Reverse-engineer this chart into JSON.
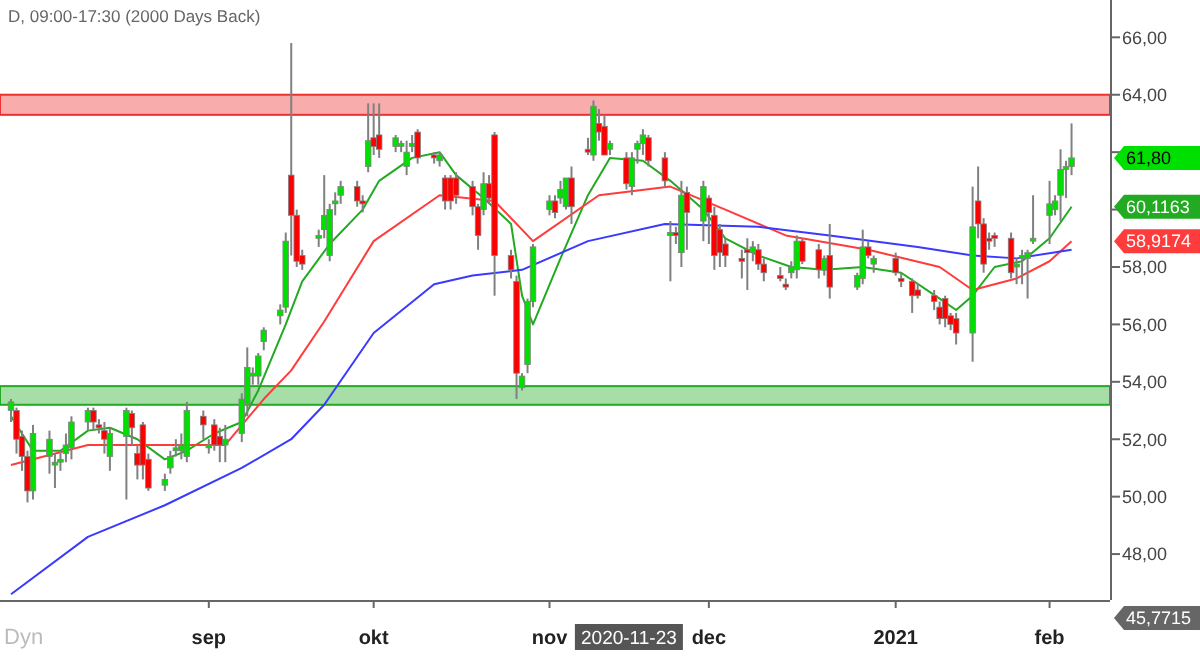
{
  "chart_data": {
    "type": "candlestick",
    "title": "D, 09:00-17:30 (2000 Days Back)",
    "x": [
      "2020-07-27",
      "2020-07-28",
      "2020-07-29",
      "2020-07-30",
      "2020-07-31",
      "2020-08-03",
      "2020-08-04",
      "2020-08-05",
      "2020-08-06",
      "2020-08-07",
      "2020-08-10",
      "2020-08-11",
      "2020-08-12",
      "2020-08-13",
      "2020-08-14",
      "2020-08-17",
      "2020-08-18",
      "2020-08-19",
      "2020-08-20",
      "2020-08-21",
      "2020-08-24",
      "2020-08-25",
      "2020-08-26",
      "2020-08-27",
      "2020-08-28",
      "2020-08-31",
      "2020-09-01",
      "2020-09-02",
      "2020-09-03",
      "2020-09-04",
      "2020-09-07",
      "2020-09-08",
      "2020-09-09",
      "2020-09-10",
      "2020-09-11",
      "2020-09-14",
      "2020-09-15",
      "2020-09-16",
      "2020-09-17",
      "2020-09-18",
      "2020-09-21",
      "2020-09-22",
      "2020-09-23",
      "2020-09-24",
      "2020-09-25",
      "2020-09-28",
      "2020-09-29",
      "2020-09-30",
      "2020-10-01",
      "2020-10-02",
      "2020-10-05",
      "2020-10-06",
      "2020-10-07",
      "2020-10-08",
      "2020-10-09",
      "2020-10-12",
      "2020-10-13",
      "2020-10-14",
      "2020-10-15",
      "2020-10-16",
      "2020-10-19",
      "2020-10-20",
      "2020-10-21",
      "2020-10-22",
      "2020-10-23",
      "2020-10-26",
      "2020-10-27",
      "2020-10-28",
      "2020-10-29",
      "2020-10-30",
      "2020-11-02",
      "2020-11-03",
      "2020-11-04",
      "2020-11-05",
      "2020-11-06",
      "2020-11-09",
      "2020-11-10",
      "2020-11-11",
      "2020-11-12",
      "2020-11-13",
      "2020-11-16",
      "2020-11-17",
      "2020-11-18",
      "2020-11-19",
      "2020-11-20",
      "2020-11-23",
      "2020-11-24",
      "2020-11-25",
      "2020-11-26",
      "2020-11-27",
      "2020-11-30",
      "2020-12-01",
      "2020-12-02",
      "2020-12-03",
      "2020-12-04",
      "2020-12-07",
      "2020-12-08",
      "2020-12-09",
      "2020-12-10",
      "2020-12-11",
      "2020-12-14",
      "2020-12-15",
      "2020-12-16",
      "2020-12-17",
      "2020-12-18",
      "2020-12-21",
      "2020-12-22",
      "2020-12-23",
      "2020-12-28",
      "2020-12-29",
      "2020-12-30",
      "2020-12-31",
      "2021-01-04",
      "2021-01-05",
      "2021-01-07",
      "2021-01-08",
      "2021-01-11",
      "2021-01-12",
      "2021-01-13",
      "2021-01-14",
      "2021-01-15",
      "2021-01-18",
      "2021-01-19",
      "2021-01-20",
      "2021-01-21",
      "2021-01-22",
      "2021-01-25",
      "2021-01-26",
      "2021-01-27",
      "2021-01-28",
      "2021-01-29",
      "2021-02-01",
      "2021-02-02",
      "2021-02-03",
      "2021-02-04",
      "2021-02-05"
    ],
    "ohlc": [
      [
        53.0,
        53.4,
        52.6,
        53.3
      ],
      [
        53.0,
        53.1,
        51.5,
        52.0
      ],
      [
        52.1,
        52.3,
        50.9,
        51.4
      ],
      [
        51.4,
        51.6,
        49.8,
        50.2
      ],
      [
        50.2,
        52.5,
        49.9,
        52.2
      ],
      [
        51.4,
        52.3,
        50.8,
        52.0
      ],
      [
        51.1,
        51.5,
        50.3,
        51.2
      ],
      [
        51.2,
        51.6,
        50.9,
        51.3
      ],
      [
        51.5,
        52.2,
        51.2,
        51.8
      ],
      [
        51.7,
        52.8,
        51.3,
        52.6
      ],
      [
        52.6,
        53.1,
        52.3,
        53.0
      ],
      [
        53.0,
        53.1,
        52.3,
        52.6
      ],
      [
        52.5,
        52.7,
        52.2,
        52.4
      ],
      [
        52.3,
        52.6,
        51.5,
        52.0
      ],
      [
        51.4,
        52.4,
        50.9,
        52.2
      ],
      [
        52.1,
        53.1,
        49.9,
        53.0
      ],
      [
        52.9,
        53.0,
        51.8,
        52.4
      ],
      [
        51.5,
        51.8,
        50.6,
        51.1
      ],
      [
        52.5,
        52.6,
        50.6,
        51.1
      ],
      [
        51.3,
        51.5,
        50.2,
        50.3
      ],
      [
        50.4,
        50.8,
        50.2,
        50.6
      ],
      [
        51.0,
        51.6,
        50.8,
        51.4
      ],
      [
        51.6,
        52.0,
        51.4,
        51.7
      ],
      [
        51.6,
        52.2,
        51.3,
        51.8
      ],
      [
        51.4,
        53.3,
        51.2,
        53.0
      ],
      [
        52.8,
        53.0,
        52.0,
        52.5
      ],
      [
        51.7,
        52.0,
        51.5,
        51.8
      ],
      [
        52.5,
        52.7,
        51.6,
        51.8
      ],
      [
        52.1,
        52.4,
        51.2,
        51.8
      ],
      [
        51.8,
        52.5,
        51.2,
        52.0
      ],
      [
        52.2,
        53.6,
        51.9,
        53.4
      ],
      [
        53.2,
        55.2,
        52.8,
        54.5
      ],
      [
        54.2,
        54.5,
        53.9,
        54.3
      ],
      [
        54.2,
        55.0,
        53.9,
        54.9
      ],
      [
        55.4,
        55.9,
        55.1,
        55.8
      ],
      [
        56.3,
        56.7,
        56.0,
        56.5
      ],
      [
        56.6,
        59.2,
        56.4,
        58.9
      ],
      [
        61.2,
        65.8,
        58.4,
        59.8
      ],
      [
        59.8,
        60.0,
        58.0,
        58.2
      ],
      [
        58.4,
        58.6,
        57.9,
        58.1
      ],
      [
        59.0,
        59.3,
        58.7,
        59.1
      ],
      [
        59.3,
        61.2,
        59.0,
        59.8
      ],
      [
        58.4,
        60.2,
        58.2,
        60.0
      ],
      [
        60.2,
        60.6,
        59.8,
        60.3
      ],
      [
        60.5,
        61.0,
        60.2,
        60.8
      ],
      [
        60.8,
        61.0,
        60.1,
        60.3
      ],
      [
        60.3,
        60.5,
        59.9,
        60.2
      ],
      [
        61.5,
        63.7,
        61.3,
        62.4
      ],
      [
        62.5,
        63.7,
        61.9,
        62.2
      ],
      [
        62.6,
        63.7,
        61.8,
        62.1
      ],
      [
        62.2,
        62.6,
        62.0,
        62.5
      ],
      [
        62.2,
        62.4,
        62.0,
        62.3
      ],
      [
        61.5,
        62.4,
        61.2,
        62.0
      ],
      [
        62.2,
        62.6,
        62.0,
        62.3
      ],
      [
        62.7,
        62.8,
        61.6,
        61.8
      ],
      [
        61.9,
        62.0,
        61.6,
        61.8
      ],
      [
        61.7,
        62.0,
        61.5,
        61.9
      ],
      [
        61.1,
        61.2,
        60.0,
        60.3
      ],
      [
        61.1,
        61.2,
        60.0,
        60.3
      ],
      [
        61.1,
        61.3,
        60.2,
        60.5
      ],
      [
        60.8,
        61.0,
        59.8,
        60.1
      ],
      [
        60.1,
        60.2,
        58.6,
        59.1
      ],
      [
        60.0,
        61.3,
        59.8,
        60.9
      ],
      [
        60.9,
        61.2,
        60.2,
        60.4
      ],
      [
        62.6,
        62.7,
        57.0,
        58.4
      ],
      [
        58.4,
        58.6,
        57.6,
        57.9
      ],
      [
        57.5,
        57.7,
        53.4,
        54.3
      ],
      [
        53.8,
        54.3,
        53.7,
        54.2
      ],
      [
        54.6,
        56.9,
        54.3,
        56.8
      ],
      [
        56.8,
        58.8,
        56.6,
        58.7
      ],
      [
        60.0,
        60.5,
        59.8,
        60.3
      ],
      [
        60.3,
        60.5,
        59.7,
        59.9
      ],
      [
        60.4,
        61.0,
        60.2,
        60.7
      ],
      [
        60.1,
        61.1,
        60.0,
        61.1
      ],
      [
        61.1,
        61.5,
        59.5,
        60.1
      ],
      [
        62.1,
        62.5,
        61.9,
        62.0
      ],
      [
        61.9,
        63.8,
        61.7,
        63.6
      ],
      [
        63.0,
        63.5,
        62.4,
        62.7
      ],
      [
        62.9,
        63.3,
        61.9,
        61.9
      ],
      [
        62.1,
        62.4,
        61.9,
        62.3
      ],
      [
        61.8,
        62.0,
        60.7,
        60.9
      ],
      [
        60.8,
        62.0,
        60.5,
        61.8
      ],
      [
        62.1,
        62.4,
        61.6,
        62.3
      ],
      [
        62.3,
        62.8,
        61.9,
        62.6
      ],
      [
        62.5,
        62.6,
        61.5,
        61.7
      ],
      [
        61.8,
        62.0,
        60.8,
        61.0
      ],
      [
        59.1,
        59.6,
        57.5,
        59.2
      ],
      [
        59.2,
        59.4,
        58.8,
        59.1
      ],
      [
        58.5,
        61.0,
        58.0,
        60.5
      ],
      [
        60.6,
        60.8,
        58.6,
        59.9
      ],
      [
        59.6,
        61.0,
        58.9,
        60.8
      ],
      [
        60.4,
        60.5,
        58.8,
        59.9
      ],
      [
        59.8,
        60.1,
        57.9,
        58.4
      ],
      [
        59.3,
        59.5,
        58.0,
        58.5
      ],
      [
        58.8,
        59.0,
        58.0,
        58.4
      ],
      [
        58.3,
        58.6,
        57.6,
        58.2
      ],
      [
        58.6,
        59.0,
        57.2,
        58.5
      ],
      [
        58.5,
        58.9,
        58.2,
        58.7
      ],
      [
        58.6,
        58.8,
        57.9,
        58.1
      ],
      [
        58.1,
        58.3,
        57.5,
        57.8
      ],
      [
        57.7,
        58.0,
        57.5,
        57.6
      ],
      [
        57.4,
        57.6,
        57.2,
        57.3
      ],
      [
        57.8,
        58.2,
        57.6,
        58.0
      ],
      [
        57.9,
        59.1,
        57.6,
        58.9
      ],
      [
        58.9,
        59.0,
        58.1,
        58.2
      ],
      [
        58.6,
        58.8,
        57.6,
        57.9
      ],
      [
        57.9,
        58.4,
        57.7,
        58.3
      ],
      [
        58.4,
        59.5,
        56.9,
        57.3
      ],
      [
        57.3,
        57.8,
        57.2,
        57.7
      ],
      [
        57.6,
        59.3,
        57.4,
        58.7
      ],
      [
        58.7,
        58.9,
        58.3,
        58.4
      ],
      [
        58.1,
        58.4,
        57.8,
        58.3
      ],
      [
        58.3,
        58.5,
        57.7,
        57.8
      ],
      [
        57.6,
        57.8,
        57.3,
        57.5
      ],
      [
        57.5,
        57.6,
        56.4,
        57.0
      ],
      [
        57.2,
        57.4,
        56.9,
        57.0
      ],
      [
        57.0,
        57.2,
        56.5,
        56.8
      ],
      [
        56.6,
        56.8,
        56.0,
        56.2
      ],
      [
        56.9,
        57.0,
        55.9,
        56.2
      ],
      [
        56.3,
        56.4,
        55.8,
        56.0
      ],
      [
        56.2,
        56.4,
        55.3,
        55.7
      ],
      [
        55.7,
        60.8,
        54.7,
        59.4
      ],
      [
        60.3,
        61.5,
        59.0,
        59.5
      ],
      [
        59.5,
        59.7,
        57.8,
        58.1
      ],
      [
        59.0,
        59.2,
        58.6,
        58.9
      ],
      [
        59.1,
        59.2,
        58.7,
        59.0
      ],
      [
        59.0,
        59.2,
        57.6,
        57.8
      ],
      [
        58.0,
        58.3,
        57.4,
        58.1
      ],
      [
        58.3,
        58.6,
        57.4,
        58.4
      ],
      [
        58.3,
        58.6,
        56.9,
        58.5
      ],
      [
        58.9,
        60.5,
        58.8,
        59.0
      ],
      [
        59.8,
        61.0,
        58.8,
        60.2
      ],
      [
        60.0,
        60.5,
        59.8,
        60.3
      ],
      [
        60.5,
        62.1,
        59.6,
        61.4
      ],
      [
        61.4,
        61.7,
        60.4,
        61.5
      ],
      [
        61.5,
        63.0,
        61.2,
        61.8
      ]
    ],
    "series": [
      {
        "type": "line",
        "color": "#22aa22",
        "x": [
          "2020-07-27",
          "2020-07-31",
          "2020-08-05",
          "2020-08-10",
          "2020-08-14",
          "2020-08-19",
          "2020-08-24",
          "2020-08-28",
          "2020-09-02",
          "2020-09-07",
          "2020-09-10",
          "2020-09-15",
          "2020-09-18",
          "2020-09-23",
          "2020-09-29",
          "2020-10-02",
          "2020-10-08",
          "2020-10-13",
          "2020-10-16",
          "2020-10-21",
          "2020-10-26",
          "2020-10-28",
          "2020-10-30",
          "2020-11-04",
          "2020-11-09",
          "2020-11-13",
          "2020-11-19",
          "2020-11-24",
          "2020-11-30",
          "2020-12-04",
          "2020-12-10",
          "2020-12-16",
          "2020-12-22",
          "2020-12-29",
          "2021-01-05",
          "2021-01-12",
          "2021-01-15",
          "2021-01-18",
          "2021-01-22",
          "2021-01-27",
          "2021-02-01",
          "2021-02-05"
        ],
        "values": [
          52.8,
          51.6,
          51.6,
          52.3,
          52.4,
          52.0,
          51.3,
          51.6,
          52.2,
          52.6,
          53.7,
          56.0,
          57.5,
          58.8,
          60.0,
          61.0,
          61.8,
          62.0,
          61.2,
          60.4,
          59.5,
          57.0,
          56.0,
          58.3,
          60.5,
          61.8,
          61.7,
          61.0,
          60.0,
          59.0,
          58.4,
          58.0,
          57.9,
          58.0,
          57.8,
          56.9,
          56.5,
          57.0,
          58.0,
          58.2,
          59.0,
          60.1
        ]
      },
      {
        "type": "line",
        "color": "#ff3c3c",
        "x": [
          "2020-07-27",
          "2020-08-10",
          "2020-08-24",
          "2020-09-04",
          "2020-09-11",
          "2020-09-16",
          "2020-09-22",
          "2020-10-01",
          "2020-10-13",
          "2020-10-23",
          "2020-10-30",
          "2020-11-11",
          "2020-11-24",
          "2020-12-04",
          "2020-12-15",
          "2020-12-30",
          "2021-01-12",
          "2021-01-18",
          "2021-01-26",
          "2021-02-01",
          "2021-02-05"
        ],
        "values": [
          51.1,
          51.8,
          51.8,
          51.8,
          53.4,
          54.4,
          56.1,
          58.9,
          60.5,
          60.3,
          58.9,
          60.5,
          60.8,
          60.0,
          59.1,
          58.6,
          58.0,
          57.2,
          57.6,
          58.2,
          58.9
        ]
      },
      {
        "type": "line",
        "color": "#3a3aff",
        "x": [
          "2020-07-27",
          "2020-08-10",
          "2020-08-24",
          "2020-09-07",
          "2020-09-16",
          "2020-09-22",
          "2020-10-01",
          "2020-10-12",
          "2020-10-19",
          "2020-10-28",
          "2020-11-09",
          "2020-11-23",
          "2020-12-10",
          "2020-12-23",
          "2021-01-08",
          "2021-01-18",
          "2021-01-26",
          "2021-02-05"
        ],
        "values": [
          46.6,
          48.6,
          49.7,
          51.0,
          52.0,
          53.2,
          55.7,
          57.4,
          57.7,
          57.9,
          58.9,
          59.5,
          59.4,
          59.1,
          58.7,
          58.4,
          58.3,
          58.6
        ]
      }
    ],
    "bands": [
      {
        "axis": "y",
        "from": 63.3,
        "to": 64.0,
        "color": "#ee3030"
      },
      {
        "axis": "y",
        "from": 53.2,
        "to": 53.85,
        "color": "#22aa22"
      }
    ],
    "xlim": [
      "2020-07-25",
      "2021-02-12"
    ],
    "xticks": [
      {
        "value": "2020-09-01",
        "label": "sep"
      },
      {
        "value": "2020-10-01",
        "label": "okt"
      },
      {
        "value": "2020-11-02",
        "label": "nov"
      },
      {
        "value": "2020-12-01",
        "label": "dec"
      },
      {
        "value": "2021-01-04",
        "label": "2021"
      },
      {
        "value": "2021-02-01",
        "label": "feb"
      }
    ],
    "ylim": [
      46.4,
      67.3
    ],
    "yticks": [
      {
        "value": 48,
        "label": "48,00"
      },
      {
        "value": 50,
        "label": "50,00"
      },
      {
        "value": 52,
        "label": "52,00"
      },
      {
        "value": 54,
        "label": "54,00"
      },
      {
        "value": 56,
        "label": "56,00"
      },
      {
        "value": 58,
        "label": "58,00"
      },
      {
        "value": 60,
        "label": null
      },
      {
        "value": 62,
        "label": null
      },
      {
        "value": 64,
        "label": "64,00"
      },
      {
        "value": 66,
        "label": "66,00"
      }
    ],
    "annotations": [
      "61,80",
      "60,1163",
      "58,9174",
      "2020-11-23",
      "45,7715",
      "Dyn"
    ]
  }
}
